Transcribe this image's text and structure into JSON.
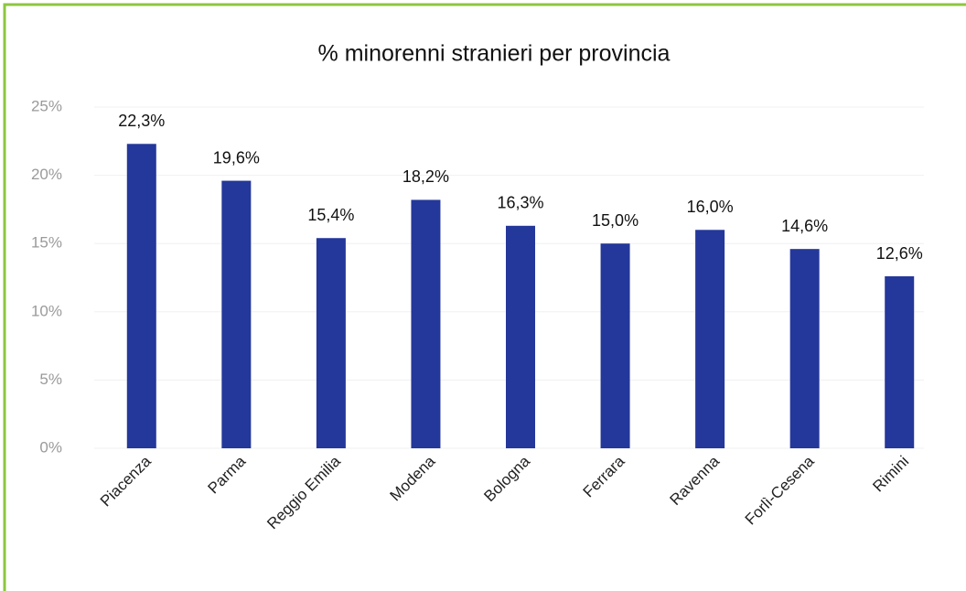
{
  "chart_data": {
    "type": "bar",
    "title": "% minorenni stranieri  per provincia",
    "categories": [
      "Piacenza",
      "Parma",
      "Reggio Emilia",
      "Modena",
      "Bologna",
      "Ferrara",
      "Ravenna",
      "Forlì-Cesena",
      "Rimini"
    ],
    "values": [
      22.3,
      19.6,
      15.4,
      18.2,
      16.3,
      15.0,
      16.0,
      14.6,
      12.6
    ],
    "value_labels": [
      "22,3%",
      "19,6%",
      "15,4%",
      "18,2%",
      "16,3%",
      "15,0%",
      "16,0%",
      "14,6%",
      "12,6%"
    ],
    "color": "#24379a",
    "ylim": [
      0,
      25
    ],
    "yticks": [
      {
        "value": 0,
        "label": "0%"
      },
      {
        "value": 5,
        "label": "5%"
      },
      {
        "value": 10,
        "label": "10%"
      },
      {
        "value": 15,
        "label": "15%"
      },
      {
        "value": 20,
        "label": "20%"
      },
      {
        "value": 25,
        "label": "25%"
      }
    ],
    "grid": true
  }
}
